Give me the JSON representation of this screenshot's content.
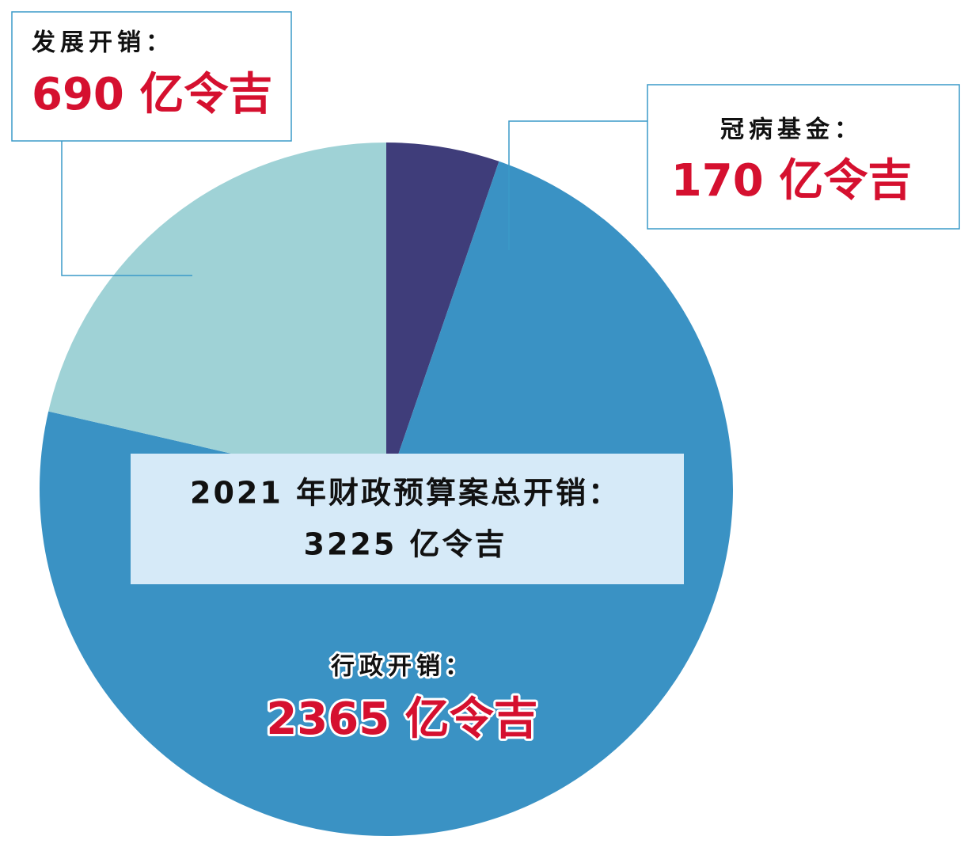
{
  "chart_data": {
    "type": "pie",
    "categories": [
      "冠病基金：",
      "行政开销：",
      "发展开销："
    ],
    "values": [
      170,
      2365,
      690
    ],
    "value_labels": [
      "170 亿令吉",
      "2365 亿令吉",
      "690 亿令吉"
    ],
    "colors": [
      "#3f3d7a",
      "#3a92c4",
      "#9fd2d6"
    ],
    "annotations": [
      "2021 年财政预算案总开销：",
      "3225 亿令吉"
    ]
  }
}
